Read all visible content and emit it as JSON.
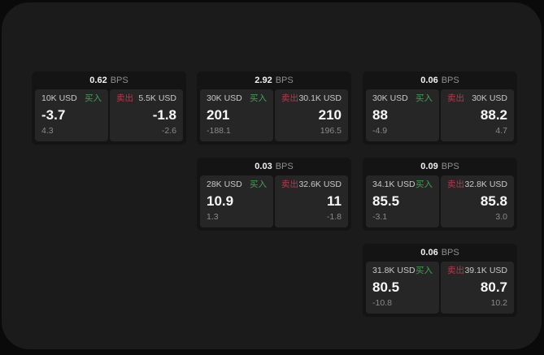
{
  "labels": {
    "buy": "买入",
    "sell": "卖出",
    "bps": "BPS"
  },
  "colors": {
    "buy_green": "#42a152",
    "sell_red": "#b23a4e",
    "page_bg": "#0a0a0a",
    "board_bg": "#1b1b1b",
    "card_bg": "#141414",
    "panel_bg": "#262626"
  },
  "cards": [
    {
      "bps_value": "0.62",
      "buy": {
        "amount": "10K USD",
        "value": "-3.7",
        "sub": "4.3"
      },
      "sell": {
        "amount": "5.5K USD",
        "value": "-1.8",
        "sub": "-2.6"
      }
    },
    {
      "bps_value": "2.92",
      "buy": {
        "amount": "30K USD",
        "value": "201",
        "sub": "-188.1"
      },
      "sell": {
        "amount": "30.1K USD",
        "value": "210",
        "sub": "196.5"
      }
    },
    {
      "bps_value": "0.06",
      "buy": {
        "amount": "30K USD",
        "value": "88",
        "sub": "-4.9"
      },
      "sell": {
        "amount": "30K USD",
        "value": "88.2",
        "sub": "4.7"
      }
    },
    {
      "bps_value": "0.03",
      "buy": {
        "amount": "28K USD",
        "value": "10.9",
        "sub": "1.3"
      },
      "sell": {
        "amount": "32.6K USD",
        "value": "11",
        "sub": "-1.8"
      }
    },
    {
      "bps_value": "0.09",
      "buy": {
        "amount": "34.1K USD",
        "value": "85.5",
        "sub": "-3.1"
      },
      "sell": {
        "amount": "32.8K USD",
        "value": "85.8",
        "sub": "3.0"
      }
    },
    {
      "bps_value": "0.06",
      "buy": {
        "amount": "31.8K USD",
        "value": "80.5",
        "sub": "-10.8"
      },
      "sell": {
        "amount": "39.1K USD",
        "value": "80.7",
        "sub": "10.2"
      }
    }
  ]
}
